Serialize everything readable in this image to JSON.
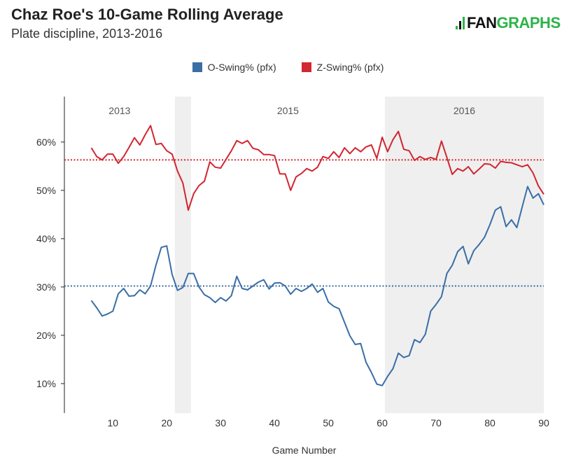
{
  "title": "Chaz Roe's 10-Game Rolling Average",
  "subtitle": "Plate discipline, 2013-2016",
  "logo": {
    "text": "FANGRAPHS",
    "brand_color": "#2db34a"
  },
  "chart_data": {
    "type": "line",
    "title": "Chaz Roe's 10-Game Rolling Average",
    "subtitle": "Plate discipline, 2013-2016",
    "xlabel": "Game Number",
    "ylabel": "",
    "xlim": [
      1,
      90
    ],
    "ylim": [
      3.9,
      69.4
    ],
    "x_ticks": [
      10,
      20,
      30,
      40,
      50,
      60,
      70,
      80,
      90
    ],
    "y_ticks": [
      10,
      20,
      30,
      40,
      50,
      60
    ],
    "y_tick_labels": [
      "10%",
      "20%",
      "30%",
      "40%",
      "50%",
      "60%"
    ],
    "grid": false,
    "legend": "top",
    "x": [
      6,
      7,
      8,
      9,
      10,
      11,
      12,
      13,
      14,
      15,
      16,
      17,
      18,
      19,
      20,
      21,
      22,
      23,
      24,
      25,
      26,
      27,
      28,
      29,
      30,
      31,
      32,
      33,
      34,
      35,
      36,
      37,
      38,
      39,
      40,
      41,
      42,
      43,
      44,
      45,
      46,
      47,
      48,
      49,
      50,
      51,
      52,
      53,
      54,
      55,
      56,
      57,
      58,
      59,
      60,
      61,
      62,
      63,
      64,
      65,
      66,
      67,
      68,
      69,
      70,
      71,
      72,
      73,
      74,
      75,
      76,
      77,
      78,
      79,
      80,
      81,
      82,
      83,
      84,
      85,
      86,
      87,
      88,
      89,
      90
    ],
    "series": [
      {
        "name": "O-Swing% (pfx)",
        "color": "#3a6ea5",
        "average": 30.2,
        "values": [
          27.2,
          25.7,
          24.0,
          24.4,
          25.0,
          28.6,
          29.7,
          28.1,
          28.2,
          29.4,
          28.6,
          30.2,
          34.5,
          38.2,
          38.5,
          32.6,
          29.3,
          29.9,
          32.8,
          32.8,
          30.0,
          28.4,
          27.8,
          26.8,
          27.8,
          27.1,
          28.2,
          32.2,
          29.7,
          29.4,
          30.2,
          31.0,
          31.5,
          29.6,
          30.8,
          30.9,
          30.2,
          28.5,
          29.7,
          29.1,
          29.7,
          30.6,
          28.9,
          29.7,
          26.9,
          26.0,
          25.5,
          22.7,
          19.9,
          18.1,
          18.3,
          14.4,
          12.3,
          9.9,
          9.6,
          11.5,
          13.1,
          16.3,
          15.4,
          15.8,
          19.1,
          18.5,
          20.2,
          25.0,
          26.4,
          28.0,
          32.8,
          34.5,
          37.3,
          38.4,
          34.8,
          37.5,
          38.8,
          40.3,
          42.9,
          45.9,
          46.6,
          42.5,
          43.9,
          42.3,
          46.6,
          50.8,
          48.4,
          49.3,
          47.0
        ]
      },
      {
        "name": "Z-Swing% (pfx)",
        "color": "#d22630",
        "average": 56.3,
        "values": [
          58.8,
          57.0,
          56.3,
          57.5,
          57.5,
          55.6,
          57.0,
          58.9,
          60.9,
          59.4,
          61.5,
          63.4,
          59.5,
          59.7,
          58.2,
          57.5,
          54.0,
          51.5,
          45.9,
          49.3,
          51.0,
          51.9,
          55.9,
          54.8,
          54.6,
          56.4,
          58.2,
          60.3,
          59.7,
          60.3,
          58.7,
          58.4,
          57.4,
          57.4,
          57.2,
          53.4,
          53.4,
          50.0,
          52.8,
          53.5,
          54.5,
          54.0,
          54.8,
          57.0,
          56.6,
          58.0,
          56.8,
          58.8,
          57.6,
          58.8,
          58.0,
          59.0,
          59.4,
          56.6,
          61.0,
          58.0,
          60.5,
          62.2,
          58.5,
          58.2,
          56.2,
          57.0,
          56.4,
          56.8,
          56.4,
          60.2,
          56.8,
          53.3,
          54.5,
          54.0,
          54.9,
          53.4,
          54.4,
          55.5,
          55.4,
          54.6,
          56.0,
          55.8,
          55.7,
          55.3,
          54.9,
          55.3,
          53.6,
          50.9,
          49.2
        ]
      }
    ],
    "season_bands": [
      {
        "label": "2013",
        "from": 1,
        "to": 21.5,
        "shaded": false
      },
      {
        "label": "",
        "from": 21.5,
        "to": 24.5,
        "shaded": true
      },
      {
        "label": "2015",
        "from": 24.5,
        "to": 60.5,
        "shaded": false
      },
      {
        "label": "2016",
        "from": 60.5,
        "to": 90,
        "shaded": true
      }
    ]
  }
}
